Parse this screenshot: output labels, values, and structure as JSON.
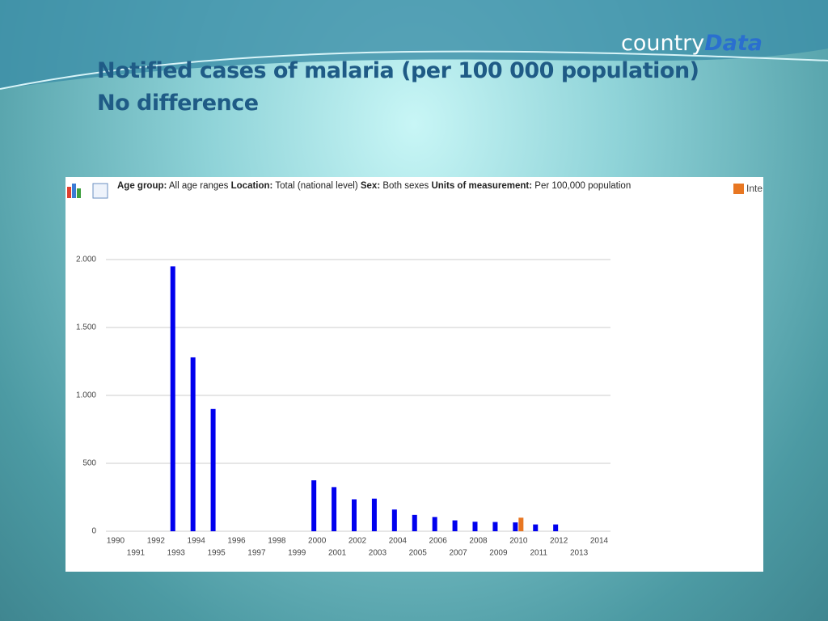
{
  "header": {
    "logo_part1": "country",
    "logo_part2": "Data",
    "title": "Notified cases of malaria (per 100 000 population)",
    "subtitle": "No difference"
  },
  "filters": [
    {
      "label": "Age group:",
      "value": "All age ranges"
    },
    {
      "label": "Location:",
      "value": "Total (national level)"
    },
    {
      "label": "Sex:",
      "value": "Both sexes"
    },
    {
      "label": "Units of measurement:",
      "value": "Per 100,000 population"
    }
  ],
  "chart_data": {
    "type": "bar",
    "x": [
      1990,
      1991,
      1992,
      1993,
      1994,
      1995,
      1996,
      1997,
      1998,
      1999,
      2000,
      2001,
      2002,
      2003,
      2004,
      2005,
      2006,
      2007,
      2008,
      2009,
      2010,
      2011,
      2012,
      2013,
      2014
    ],
    "series": [
      {
        "color": "#0000ee",
        "values": [
          null,
          null,
          null,
          1950,
          1280,
          900,
          null,
          null,
          null,
          null,
          375,
          325,
          235,
          240,
          160,
          120,
          105,
          80,
          70,
          68,
          65,
          50,
          50,
          null,
          null
        ]
      },
      {
        "name": "Inte",
        "color": "#e87722",
        "values": [
          null,
          null,
          null,
          null,
          null,
          null,
          null,
          null,
          null,
          null,
          null,
          null,
          null,
          null,
          null,
          null,
          null,
          null,
          null,
          null,
          100,
          null,
          null,
          null,
          null
        ]
      }
    ],
    "xlim": [
      1990,
      2014
    ],
    "xticks": [
      1990,
      1991,
      1992,
      1993,
      1994,
      1995,
      1996,
      1997,
      1998,
      1999,
      2000,
      2001,
      2002,
      2003,
      2004,
      2005,
      2006,
      2007,
      2008,
      2009,
      2010,
      2011,
      2012,
      2013,
      2014
    ],
    "ylim": [
      0,
      2000
    ],
    "yticks": [
      0,
      500,
      {
        "value": 1000,
        "label": "1.000"
      },
      {
        "value": 1500,
        "label": "1.500"
      },
      {
        "value": 2000,
        "label": "2.000"
      }
    ],
    "grid": true
  }
}
